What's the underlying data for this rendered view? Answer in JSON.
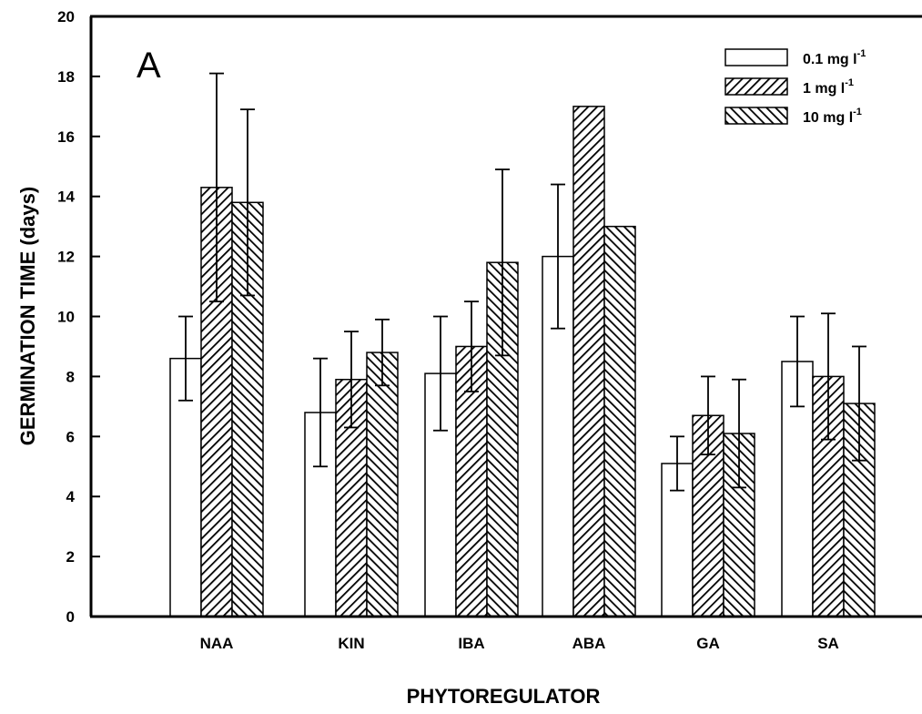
{
  "chart_data": {
    "type": "bar",
    "panel_label": "A",
    "xlabel": "PHYTOREGULATOR",
    "ylabel": "GERMINATION TIME (days)",
    "ylim": [
      0,
      20
    ],
    "yticks": [
      0,
      2,
      4,
      6,
      8,
      10,
      12,
      14,
      16,
      18,
      20
    ],
    "categories": [
      "NAA",
      "KIN",
      "IBA",
      "ABA",
      "GA",
      "SA"
    ],
    "legend_position": "top-right",
    "series": [
      {
        "name": "0.1 mg l",
        "unit_sup": "-1",
        "fill": "white",
        "values": [
          8.6,
          6.8,
          8.1,
          12.0,
          5.1,
          8.5
        ],
        "errors": [
          1.4,
          1.8,
          1.9,
          2.4,
          0.9,
          1.5
        ]
      },
      {
        "name": "1 mg l",
        "unit_sup": "-1",
        "fill": "hatch-right",
        "values": [
          14.3,
          7.9,
          9.0,
          17.0,
          6.7,
          8.0
        ],
        "errors": [
          3.8,
          1.6,
          1.5,
          0.0,
          1.3,
          2.1
        ]
      },
      {
        "name": "10 mg l",
        "unit_sup": "-1",
        "fill": "hatch-left",
        "values": [
          13.8,
          8.8,
          11.8,
          13.0,
          6.1,
          7.1
        ],
        "errors": [
          3.1,
          1.1,
          3.1,
          0.0,
          1.8,
          1.9
        ]
      }
    ]
  }
}
